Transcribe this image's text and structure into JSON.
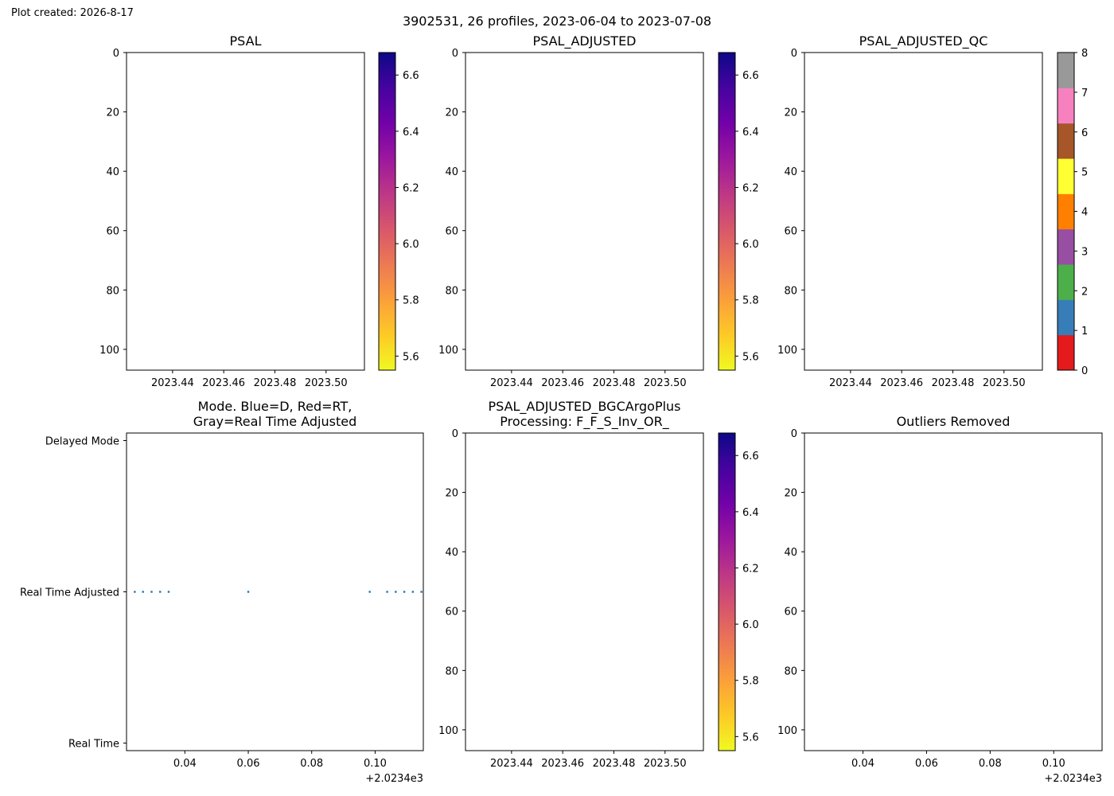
{
  "plot_created": "Plot created: 2026-8-17",
  "suptitle": "3902531, 26 profiles, 2023-06-04 to 2023-07-08",
  "colors": {
    "plasma_r": [
      "#f0f921",
      "#fdca26",
      "#fb9f3a",
      "#ed7953",
      "#d8576b",
      "#bd3786",
      "#9c179e",
      "#7201a8",
      "#46039f",
      "#0d0887"
    ],
    "qc": [
      "#e41a1c",
      "#377eb8",
      "#4daf4a",
      "#984ea3",
      "#ff7f00",
      "#ffff33",
      "#a65628",
      "#f781bf",
      "#999999"
    ],
    "mode_dot": "#1f77b4"
  },
  "chart_data": [
    {
      "type": "heatmap",
      "title": "PSAL",
      "xticks": [
        "2023.44",
        "2023.46",
        "2023.48",
        "2023.50"
      ],
      "xlim": [
        2023.422,
        2023.515
      ],
      "yticks": [
        "0",
        "20",
        "40",
        "60",
        "80",
        "100"
      ],
      "ylim": [
        107,
        0
      ],
      "colorbar": {
        "cmap": "plasma_r",
        "range": [
          5.55,
          6.68
        ],
        "ticks": [
          "5.6",
          "5.8",
          "6.0",
          "6.2",
          "6.4",
          "6.6"
        ]
      }
    },
    {
      "type": "heatmap",
      "title": "PSAL_ADJUSTED",
      "xticks": [
        "2023.44",
        "2023.46",
        "2023.48",
        "2023.50"
      ],
      "xlim": [
        2023.422,
        2023.515
      ],
      "yticks": [
        "0",
        "20",
        "40",
        "60",
        "80",
        "100"
      ],
      "ylim": [
        107,
        0
      ],
      "colorbar": {
        "cmap": "plasma_r",
        "range": [
          5.55,
          6.68
        ],
        "ticks": [
          "5.6",
          "5.8",
          "6.0",
          "6.2",
          "6.4",
          "6.6"
        ]
      }
    },
    {
      "type": "heatmap",
      "title": "PSAL_ADJUSTED_QC",
      "xticks": [
        "2023.44",
        "2023.46",
        "2023.48",
        "2023.50"
      ],
      "xlim": [
        2023.422,
        2023.515
      ],
      "yticks": [
        "0",
        "20",
        "40",
        "60",
        "80",
        "100"
      ],
      "ylim": [
        107,
        0
      ],
      "colorbar": {
        "cmap": "qc",
        "range": [
          0,
          8
        ],
        "ticks": [
          "0",
          "1",
          "2",
          "3",
          "4",
          "5",
          "6",
          "7",
          "8"
        ]
      }
    },
    {
      "type": "scatter",
      "title": "Mode. Blue=D, Red=RT,\nGray=Real Time Adjusted",
      "xticks": [
        "0.04",
        "0.06",
        "0.08",
        "0.10"
      ],
      "x_offset_label": "+2.0234e3",
      "xlim": [
        2023.4216,
        2023.5152
      ],
      "yticks": [
        "Delayed Mode",
        "Real Time Adjusted",
        "Real Time"
      ],
      "ylim": [
        -1.05,
        1.05
      ],
      "points_x": [
        2023.4242,
        2023.4268,
        2023.4295,
        2023.4322,
        2023.4349,
        2023.46,
        2023.4983,
        2023.5038,
        2023.5065,
        2023.5092,
        2023.5119,
        2023.5146
      ],
      "points_y": [
        0,
        0,
        0,
        0,
        0,
        0,
        0,
        0,
        0,
        0,
        0,
        0
      ]
    },
    {
      "type": "heatmap",
      "title": "PSAL_ADJUSTED_BGCArgoPlus\nProcessing: F_F_S_Inv_OR_",
      "xticks": [
        "2023.44",
        "2023.46",
        "2023.48",
        "2023.50"
      ],
      "xlim": [
        2023.422,
        2023.515
      ],
      "yticks": [
        "0",
        "20",
        "40",
        "60",
        "80",
        "100"
      ],
      "ylim": [
        107,
        0
      ],
      "colorbar": {
        "cmap": "plasma_r",
        "range": [
          5.55,
          6.68
        ],
        "ticks": [
          "5.6",
          "5.8",
          "6.0",
          "6.2",
          "6.4",
          "6.6"
        ]
      }
    },
    {
      "type": "heatmap",
      "title": "Outliers Removed",
      "xticks": [
        "0.04",
        "0.06",
        "0.08",
        "0.10"
      ],
      "x_offset_label": "+2.0234e3",
      "xlim": [
        2023.4216,
        2023.5152
      ],
      "yticks": [
        "0",
        "20",
        "40",
        "60",
        "80",
        "100"
      ],
      "ylim": [
        107,
        0
      ]
    }
  ]
}
